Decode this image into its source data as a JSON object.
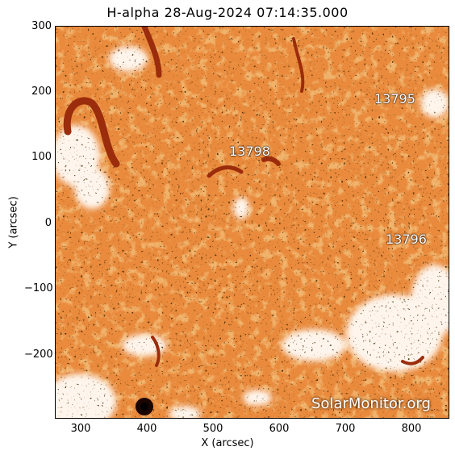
{
  "title": "H-alpha 28-Aug-2024 07:14:35.000",
  "xaxis": {
    "label": "X (arcsec)",
    "ticks": [
      "300",
      "400",
      "500",
      "600",
      "700",
      "800"
    ]
  },
  "yaxis": {
    "label": "Y (arcsec)",
    "ticks": [
      "300",
      "200",
      "100",
      "0",
      "−100",
      "−200"
    ]
  },
  "regions": [
    {
      "label": "13795"
    },
    {
      "label": "13798"
    },
    {
      "label": "13796"
    }
  ],
  "watermark": "SolarMonitor.org",
  "colors": {
    "background_chromosphere": "#e8883a",
    "filament": "#9a2a0a",
    "plage": "#fff4ea"
  }
}
